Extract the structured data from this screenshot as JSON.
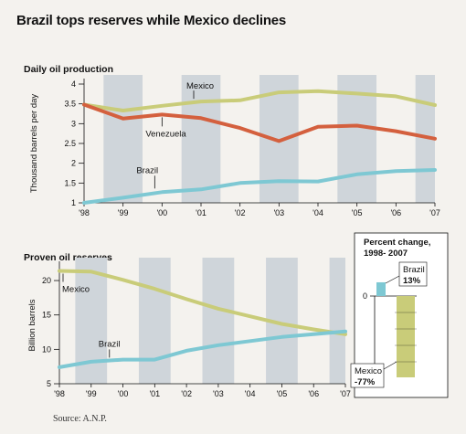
{
  "title": "Brazil tops reserves while Mexico declines",
  "source": "Source: A.N.P.",
  "colors": {
    "brazil": "#7ec8d3",
    "mexico": "#c9cc79",
    "venezuela": "#d4603e",
    "shade": "#cfd5da",
    "background": "#f4f2ee"
  },
  "chart_data": [
    {
      "type": "line",
      "title": "Daily oil production",
      "ylabel": "Thousand barrels per day",
      "x": [
        "'98",
        "'99",
        "'00",
        "'01",
        "'02",
        "'03",
        "'04",
        "'05",
        "'06",
        "'07"
      ],
      "ylim": [
        1,
        4
      ],
      "yticks": [
        "1",
        "1.5",
        "2",
        "2.5",
        "3",
        "3.5",
        "4"
      ],
      "series": [
        {
          "name": "Mexico",
          "values": [
            3.48,
            3.33,
            3.45,
            3.56,
            3.59,
            3.79,
            3.82,
            3.76,
            3.69,
            3.47
          ]
        },
        {
          "name": "Venezuela",
          "values": [
            3.48,
            3.13,
            3.23,
            3.14,
            2.89,
            2.56,
            2.92,
            2.95,
            2.81,
            2.62
          ]
        },
        {
          "name": "Brazil",
          "values": [
            1.0,
            1.13,
            1.27,
            1.34,
            1.5,
            1.55,
            1.54,
            1.72,
            1.8,
            1.83
          ]
        }
      ],
      "shaded_years": [
        "'99",
        "'01",
        "'03",
        "'05",
        "'07"
      ]
    },
    {
      "type": "line",
      "title": "Proven oil reserves",
      "ylabel": "Billion barrels",
      "x": [
        "'98",
        "'99",
        "'00",
        "'01",
        "'02",
        "'03",
        "'04",
        "'05",
        "'06",
        "'07"
      ],
      "ylim": [
        5,
        22
      ],
      "yticks": [
        "5",
        "10",
        "15",
        "20"
      ],
      "series": [
        {
          "name": "Mexico",
          "values": [
            21.4,
            21.3,
            20.1,
            18.8,
            17.3,
            15.9,
            14.8,
            13.7,
            12.9,
            12.2
          ]
        },
        {
          "name": "Brazil",
          "values": [
            7.4,
            8.2,
            8.5,
            8.5,
            9.8,
            10.6,
            11.2,
            11.8,
            12.2,
            12.6
          ]
        }
      ],
      "shaded_years": [
        "'99",
        "'01",
        "'03",
        "'05",
        "'07"
      ]
    },
    {
      "type": "bar",
      "title": "Percent change, 1998- 2007",
      "categories": [
        "Brazil",
        "Mexico"
      ],
      "values": [
        13,
        -77
      ],
      "value_labels": [
        "13%",
        "-77%"
      ],
      "zero_label": "0"
    }
  ]
}
